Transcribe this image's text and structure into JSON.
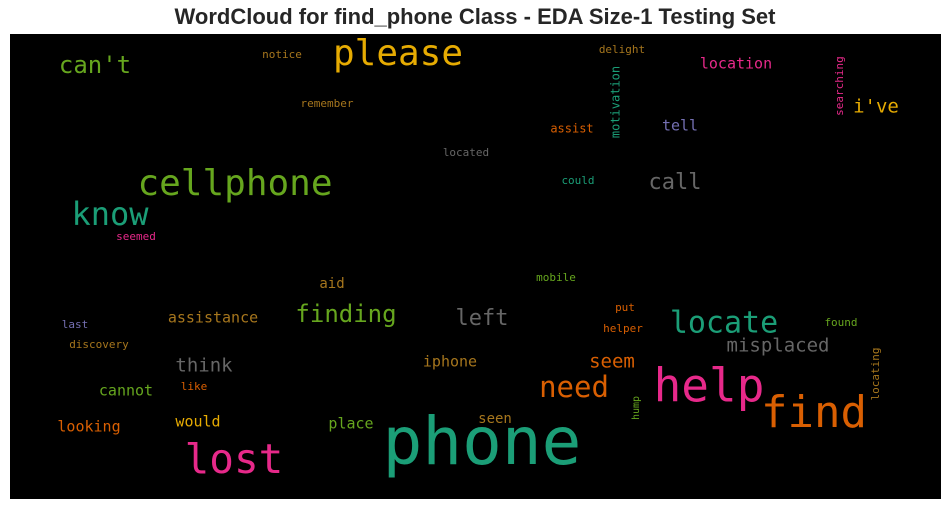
{
  "chart_data": {
    "type": "wordcloud",
    "title": "WordCloud for find_phone Class - EDA Size-1 Testing Set",
    "background": "#000000",
    "palette": [
      "#1b9e77",
      "#d95f02",
      "#7570b3",
      "#e7298a",
      "#66a61e",
      "#e6ab02",
      "#a6761d",
      "#666666"
    ],
    "words": [
      {
        "text": "phone",
        "color": "#1b9e77"
      },
      {
        "text": "help",
        "color": "#e7298a"
      },
      {
        "text": "find",
        "color": "#d95f02"
      },
      {
        "text": "lost",
        "color": "#e7298a"
      },
      {
        "text": "please",
        "color": "#e6ab02"
      },
      {
        "text": "cellphone",
        "color": "#66a61e"
      },
      {
        "text": "know",
        "color": "#1b9e77"
      },
      {
        "text": "locate",
        "color": "#1b9e77"
      },
      {
        "text": "need",
        "color": "#d95f02"
      },
      {
        "text": "finding",
        "color": "#66a61e"
      },
      {
        "text": "call",
        "color": "#666666"
      },
      {
        "text": "left",
        "color": "#666666"
      },
      {
        "text": "can't",
        "color": "#66a61e"
      },
      {
        "text": "misplaced",
        "color": "#666666"
      },
      {
        "text": "think",
        "color": "#666666"
      },
      {
        "text": "seem",
        "color": "#d95f02"
      },
      {
        "text": "i've",
        "color": "#e6ab02"
      },
      {
        "text": "assistance",
        "color": "#a6761d"
      },
      {
        "text": "location",
        "color": "#e7298a"
      },
      {
        "text": "iphone",
        "color": "#a6761d"
      },
      {
        "text": "cannot",
        "color": "#66a61e"
      },
      {
        "text": "looking",
        "color": "#d95f02"
      },
      {
        "text": "would",
        "color": "#e6ab02"
      },
      {
        "text": "place",
        "color": "#66a61e"
      },
      {
        "text": "seen",
        "color": "#a6761d"
      },
      {
        "text": "aid",
        "color": "#a6761d"
      },
      {
        "text": "tell",
        "color": "#7570b3"
      },
      {
        "text": "remember",
        "color": "#a6761d"
      },
      {
        "text": "notice",
        "color": "#a6761d"
      },
      {
        "text": "delight",
        "color": "#a6761d"
      },
      {
        "text": "assist",
        "color": "#d95f02"
      },
      {
        "text": "located",
        "color": "#666666"
      },
      {
        "text": "could",
        "color": "#1b9e77"
      },
      {
        "text": "motivation",
        "color": "#1b9e77"
      },
      {
        "text": "searching",
        "color": "#e7298a"
      },
      {
        "text": "seemed",
        "color": "#e7298a"
      },
      {
        "text": "mobile",
        "color": "#66a61e"
      },
      {
        "text": "put",
        "color": "#d95f02"
      },
      {
        "text": "helper",
        "color": "#d95f02"
      },
      {
        "text": "found",
        "color": "#66a61e"
      },
      {
        "text": "locating",
        "color": "#a6761d"
      },
      {
        "text": "last",
        "color": "#7570b3"
      },
      {
        "text": "discovery",
        "color": "#a6761d"
      },
      {
        "text": "like",
        "color": "#d95f02"
      },
      {
        "text": "hump",
        "color": "#66a61e"
      }
    ]
  }
}
